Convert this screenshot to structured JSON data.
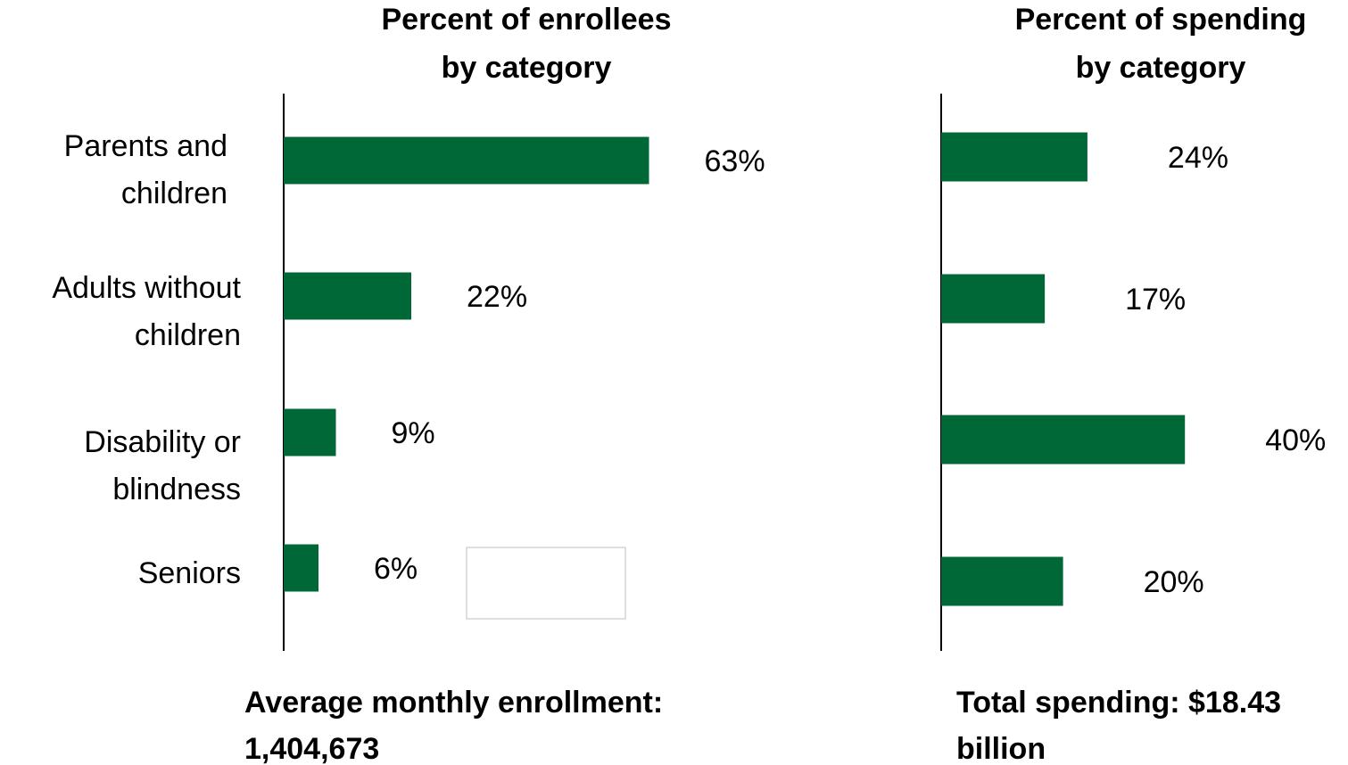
{
  "chart_data": [
    {
      "type": "bar",
      "orientation": "horizontal",
      "title": [
        "Percent of enrollees",
        "by category"
      ],
      "categories": [
        [
          "Parents and",
          "children"
        ],
        [
          "Adults without",
          "children"
        ],
        [
          "Disability or",
          "blindness"
        ],
        [
          "Seniors"
        ]
      ],
      "values": [
        63,
        22,
        9,
        6
      ],
      "value_labels": [
        "63%",
        "22%",
        "9%",
        "6%"
      ],
      "xlim": [
        0,
        100
      ],
      "grid": false,
      "bar_color": "#006837",
      "footnote": [
        "Average monthly enrollment:",
        "1,404,673"
      ]
    },
    {
      "type": "bar",
      "orientation": "horizontal",
      "title": [
        "Percent of spending",
        "by category"
      ],
      "categories": [
        [
          "Parents and",
          "children"
        ],
        [
          "Adults without",
          "children"
        ],
        [
          "Disability or",
          "blindness"
        ],
        [
          "Seniors"
        ]
      ],
      "values": [
        24,
        17,
        40,
        20
      ],
      "value_labels": [
        "24%",
        "17%",
        "40%",
        "20%"
      ],
      "xlim": [
        0,
        100
      ],
      "grid": false,
      "bar_color": "#006837",
      "footnote": [
        "Total spending: $18.43",
        "billion"
      ]
    }
  ]
}
